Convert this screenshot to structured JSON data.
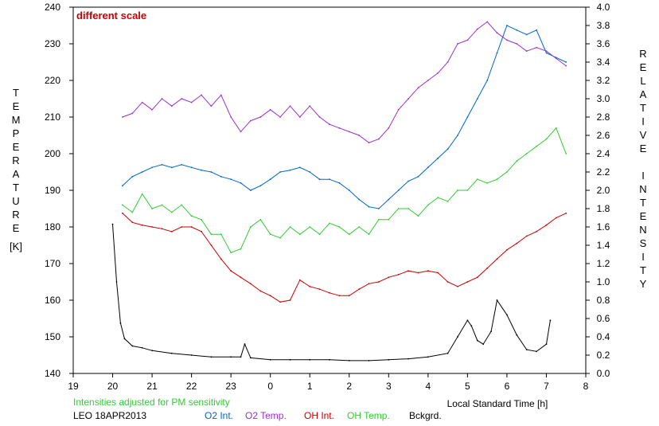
{
  "chart_data": {
    "type": "line",
    "annotation_top": "different scale",
    "annotation_bottom": "Intensities adjusted for PM sensitivity",
    "station_date": "LEO 18APR2013",
    "xlabel": "Local Standard Time [h]",
    "ylabel_left": "TEMPERATURE",
    "ylabel_left_unit": "[K]",
    "ylabel_right": "RELATIVE INTENSITY",
    "x_axis": {
      "range": [
        19,
        32
      ],
      "ticks": [
        19,
        20,
        21,
        22,
        23,
        24,
        25,
        26,
        27,
        28,
        29,
        30,
        31,
        32
      ],
      "tick_labels": [
        "19",
        "20",
        "21",
        "22",
        "23",
        "0",
        "1",
        "2",
        "3",
        "4",
        "5",
        "6",
        "7",
        "8"
      ]
    },
    "y_left": {
      "range": [
        140,
        240
      ],
      "ticks": [
        140,
        150,
        160,
        170,
        180,
        190,
        200,
        210,
        220,
        230,
        240
      ],
      "tick_labels": [
        "140",
        "150",
        "160",
        "170",
        "180",
        "190",
        "200",
        "210",
        "220",
        "230",
        "240"
      ]
    },
    "y_right": {
      "range": [
        0,
        4
      ],
      "ticks": [
        0,
        0.2,
        0.4,
        0.6,
        0.8,
        1.0,
        1.2,
        1.4,
        1.6,
        1.8,
        2.0,
        2.2,
        2.4,
        2.6,
        2.8,
        3.0,
        3.2,
        3.4,
        3.6,
        3.8,
        4.0
      ],
      "tick_labels": [
        "0.0",
        "0.2",
        "0.4",
        "0.6",
        "0.8",
        "1.0",
        "1.2",
        "1.4",
        "1.6",
        "1.8",
        "2.0",
        "2.2",
        "2.4",
        "2.6",
        "2.8",
        "3.0",
        "3.2",
        "3.4",
        "3.6",
        "3.8",
        "4.0"
      ]
    },
    "series": [
      {
        "name": "O2 Int.",
        "color": "#0066cc",
        "axis": "right",
        "points": [
          [
            20.25,
            2.05
          ],
          [
            20.5,
            2.15
          ],
          [
            20.75,
            2.2
          ],
          [
            21.0,
            2.25
          ],
          [
            21.25,
            2.28
          ],
          [
            21.5,
            2.25
          ],
          [
            21.75,
            2.28
          ],
          [
            22.0,
            2.25
          ],
          [
            22.25,
            2.22
          ],
          [
            22.5,
            2.2
          ],
          [
            22.75,
            2.15
          ],
          [
            23.0,
            2.12
          ],
          [
            23.25,
            2.08
          ],
          [
            23.5,
            2.0
          ],
          [
            23.75,
            2.05
          ],
          [
            24.0,
            2.12
          ],
          [
            24.25,
            2.2
          ],
          [
            24.5,
            2.22
          ],
          [
            24.75,
            2.25
          ],
          [
            25.0,
            2.2
          ],
          [
            25.25,
            2.12
          ],
          [
            25.5,
            2.12
          ],
          [
            25.75,
            2.08
          ],
          [
            26.0,
            2.0
          ],
          [
            26.25,
            1.9
          ],
          [
            26.5,
            1.82
          ],
          [
            26.75,
            1.8
          ],
          [
            27.0,
            1.9
          ],
          [
            27.25,
            2.0
          ],
          [
            27.5,
            2.1
          ],
          [
            27.75,
            2.15
          ],
          [
            28.0,
            2.25
          ],
          [
            28.25,
            2.35
          ],
          [
            28.5,
            2.45
          ],
          [
            28.75,
            2.6
          ],
          [
            29.0,
            2.8
          ],
          [
            29.25,
            3.0
          ],
          [
            29.5,
            3.2
          ],
          [
            29.75,
            3.5
          ],
          [
            30.0,
            3.8
          ],
          [
            30.25,
            3.75
          ],
          [
            30.5,
            3.7
          ],
          [
            30.75,
            3.75
          ],
          [
            31.0,
            3.5
          ],
          [
            31.25,
            3.45
          ],
          [
            31.5,
            3.4
          ]
        ]
      },
      {
        "name": "O2 Temp.",
        "color": "#9933cc",
        "axis": "left",
        "points": [
          [
            20.25,
            210
          ],
          [
            20.5,
            211
          ],
          [
            20.75,
            214
          ],
          [
            21.0,
            212
          ],
          [
            21.25,
            215
          ],
          [
            21.5,
            213
          ],
          [
            21.75,
            215
          ],
          [
            22.0,
            214
          ],
          [
            22.25,
            216
          ],
          [
            22.5,
            213
          ],
          [
            22.75,
            216
          ],
          [
            23.0,
            210
          ],
          [
            23.25,
            206
          ],
          [
            23.5,
            209
          ],
          [
            23.75,
            210
          ],
          [
            24.0,
            212
          ],
          [
            24.25,
            210
          ],
          [
            24.5,
            213
          ],
          [
            24.75,
            210
          ],
          [
            25.0,
            213
          ],
          [
            25.25,
            210
          ],
          [
            25.5,
            208
          ],
          [
            25.75,
            207
          ],
          [
            26.0,
            206
          ],
          [
            26.25,
            205
          ],
          [
            26.5,
            203
          ],
          [
            26.75,
            204
          ],
          [
            27.0,
            207
          ],
          [
            27.25,
            212
          ],
          [
            27.5,
            215
          ],
          [
            27.75,
            218
          ],
          [
            28.0,
            220
          ],
          [
            28.25,
            222
          ],
          [
            28.5,
            225
          ],
          [
            28.75,
            230
          ],
          [
            29.0,
            231
          ],
          [
            29.25,
            234
          ],
          [
            29.5,
            236
          ],
          [
            29.75,
            233
          ],
          [
            30.0,
            231
          ],
          [
            30.25,
            230
          ],
          [
            30.5,
            228
          ],
          [
            30.75,
            229
          ],
          [
            31.0,
            228
          ],
          [
            31.25,
            226
          ],
          [
            31.5,
            224
          ]
        ]
      },
      {
        "name": "OH Int.",
        "color": "#cc0000",
        "axis": "right",
        "points": [
          [
            20.25,
            1.75
          ],
          [
            20.5,
            1.65
          ],
          [
            20.75,
            1.62
          ],
          [
            21.0,
            1.6
          ],
          [
            21.25,
            1.58
          ],
          [
            21.5,
            1.55
          ],
          [
            21.75,
            1.6
          ],
          [
            22.0,
            1.6
          ],
          [
            22.25,
            1.55
          ],
          [
            22.5,
            1.4
          ],
          [
            22.75,
            1.25
          ],
          [
            23.0,
            1.12
          ],
          [
            23.25,
            1.05
          ],
          [
            23.5,
            0.98
          ],
          [
            23.75,
            0.9
          ],
          [
            24.0,
            0.85
          ],
          [
            24.25,
            0.78
          ],
          [
            24.5,
            0.8
          ],
          [
            24.75,
            1.02
          ],
          [
            25.0,
            0.95
          ],
          [
            25.25,
            0.92
          ],
          [
            25.5,
            0.88
          ],
          [
            25.75,
            0.85
          ],
          [
            26.0,
            0.85
          ],
          [
            26.25,
            0.92
          ],
          [
            26.5,
            0.98
          ],
          [
            26.75,
            1.0
          ],
          [
            27.0,
            1.05
          ],
          [
            27.25,
            1.08
          ],
          [
            27.5,
            1.12
          ],
          [
            27.75,
            1.1
          ],
          [
            28.0,
            1.12
          ],
          [
            28.25,
            1.1
          ],
          [
            28.5,
            1.0
          ],
          [
            28.75,
            0.95
          ],
          [
            29.0,
            1.0
          ],
          [
            29.25,
            1.05
          ],
          [
            29.5,
            1.15
          ],
          [
            29.75,
            1.25
          ],
          [
            30.0,
            1.35
          ],
          [
            30.25,
            1.42
          ],
          [
            30.5,
            1.5
          ],
          [
            30.75,
            1.55
          ],
          [
            31.0,
            1.62
          ],
          [
            31.25,
            1.7
          ],
          [
            31.5,
            1.75
          ]
        ]
      },
      {
        "name": "OH Temp.",
        "color": "#33cc33",
        "axis": "left",
        "points": [
          [
            20.25,
            186
          ],
          [
            20.5,
            184
          ],
          [
            20.75,
            189
          ],
          [
            21.0,
            185
          ],
          [
            21.25,
            186
          ],
          [
            21.5,
            184
          ],
          [
            21.75,
            186
          ],
          [
            22.0,
            183
          ],
          [
            22.25,
            182
          ],
          [
            22.5,
            178
          ],
          [
            22.75,
            178
          ],
          [
            23.0,
            173
          ],
          [
            23.25,
            174
          ],
          [
            23.5,
            180
          ],
          [
            23.75,
            182
          ],
          [
            24.0,
            178
          ],
          [
            24.25,
            177
          ],
          [
            24.5,
            180
          ],
          [
            24.75,
            178
          ],
          [
            25.0,
            180
          ],
          [
            25.25,
            178
          ],
          [
            25.5,
            181
          ],
          [
            25.75,
            180
          ],
          [
            26.0,
            178
          ],
          [
            26.25,
            180
          ],
          [
            26.5,
            178
          ],
          [
            26.75,
            182
          ],
          [
            27.0,
            182
          ],
          [
            27.25,
            185
          ],
          [
            27.5,
            185
          ],
          [
            27.75,
            183
          ],
          [
            28.0,
            186
          ],
          [
            28.25,
            188
          ],
          [
            28.5,
            187
          ],
          [
            28.75,
            190
          ],
          [
            29.0,
            190
          ],
          [
            29.25,
            193
          ],
          [
            29.5,
            192
          ],
          [
            29.75,
            193
          ],
          [
            30.0,
            195
          ],
          [
            30.25,
            198
          ],
          [
            30.5,
            200
          ],
          [
            30.75,
            202
          ],
          [
            31.0,
            204
          ],
          [
            31.25,
            207
          ],
          [
            31.5,
            200
          ]
        ]
      },
      {
        "name": "Bckgrd.",
        "color": "#000000",
        "axis": "right",
        "points": [
          [
            20.0,
            1.63
          ],
          [
            20.1,
            1.0
          ],
          [
            20.2,
            0.55
          ],
          [
            20.3,
            0.38
          ],
          [
            20.5,
            0.3
          ],
          [
            20.75,
            0.28
          ],
          [
            21.0,
            0.25
          ],
          [
            21.5,
            0.22
          ],
          [
            22.0,
            0.2
          ],
          [
            22.5,
            0.18
          ],
          [
            23.0,
            0.18
          ],
          [
            23.25,
            0.18
          ],
          [
            23.35,
            0.32
          ],
          [
            23.5,
            0.17
          ],
          [
            24.0,
            0.15
          ],
          [
            24.5,
            0.15
          ],
          [
            25.0,
            0.15
          ],
          [
            25.5,
            0.15
          ],
          [
            26.0,
            0.14
          ],
          [
            26.5,
            0.14
          ],
          [
            27.0,
            0.15
          ],
          [
            27.5,
            0.16
          ],
          [
            28.0,
            0.18
          ],
          [
            28.5,
            0.22
          ],
          [
            28.75,
            0.4
          ],
          [
            29.0,
            0.58
          ],
          [
            29.1,
            0.52
          ],
          [
            29.25,
            0.36
          ],
          [
            29.4,
            0.32
          ],
          [
            29.6,
            0.46
          ],
          [
            29.75,
            0.8
          ],
          [
            30.0,
            0.64
          ],
          [
            30.25,
            0.42
          ],
          [
            30.5,
            0.26
          ],
          [
            30.75,
            0.24
          ],
          [
            31.0,
            0.32
          ],
          [
            31.1,
            0.58
          ]
        ]
      }
    ]
  },
  "colors": {
    "annotation_top": "#cc0000",
    "annotation_bottom": "#33cc33",
    "frame": "#000000"
  }
}
